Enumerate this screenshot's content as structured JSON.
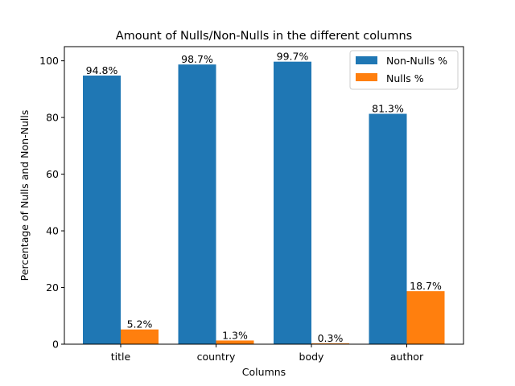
{
  "chart_data": {
    "type": "bar",
    "title": "Amount of Nulls/Non-Nulls in the different columns",
    "xlabel": "Columns",
    "ylabel": "Percentage of Nulls and Non-Nulls",
    "categories": [
      "title",
      "country",
      "body",
      "author"
    ],
    "ylim": [
      0,
      105
    ],
    "yticks": [
      0,
      20,
      40,
      60,
      80,
      100
    ],
    "grid": false,
    "legend_position": "top-right",
    "series": [
      {
        "name": "Non-Nulls %",
        "color": "#1f77b4",
        "values": [
          94.8,
          98.7,
          99.7,
          81.3
        ],
        "labels": [
          "94.8%",
          "98.7%",
          "99.7%",
          "81.3%"
        ]
      },
      {
        "name": "Nulls %",
        "color": "#ff7f0e",
        "values": [
          5.2,
          1.3,
          0.3,
          18.7
        ],
        "labels": [
          "5.2%",
          "1.3%",
          "0.3%",
          "18.7%"
        ]
      }
    ]
  }
}
